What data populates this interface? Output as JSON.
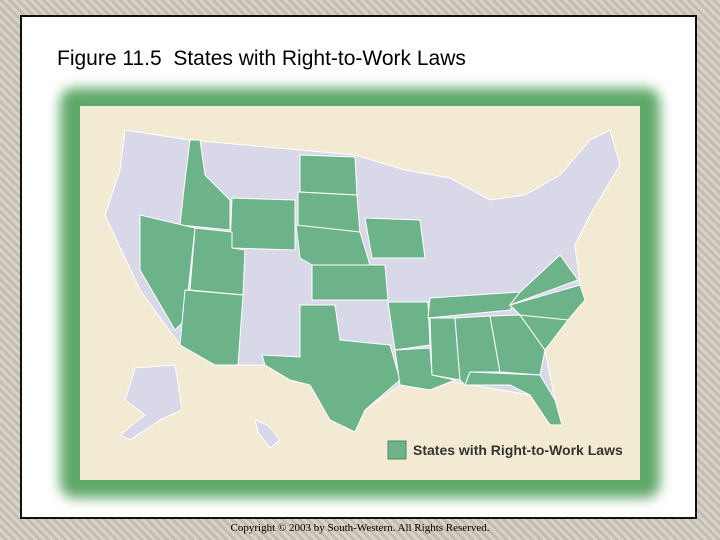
{
  "title": "Figure 11.5  States with Right-to-Work Laws",
  "legend": {
    "label": "States with Right-to-Work Laws"
  },
  "copyright": "Copyright © 2003 by South-Western. All Rights Reserved."
}
